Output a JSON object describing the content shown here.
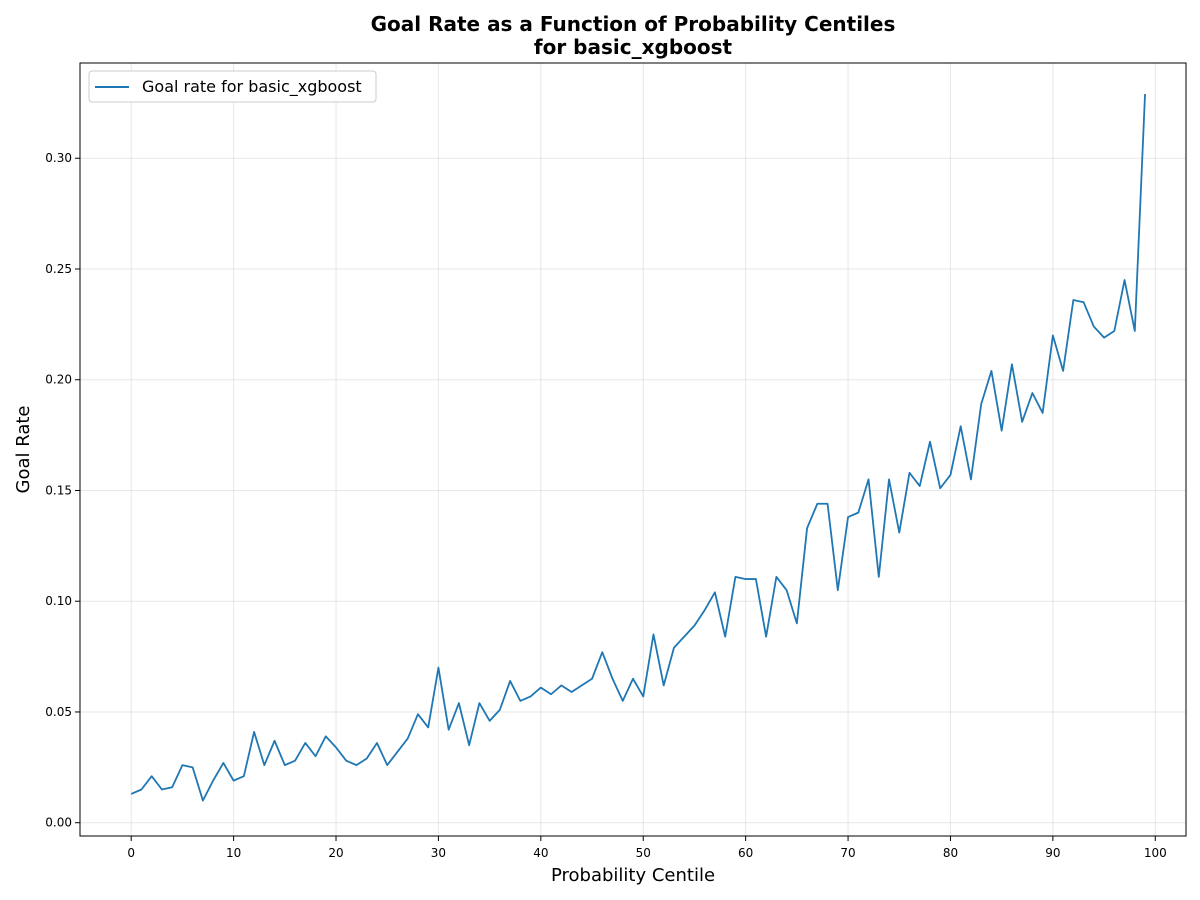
{
  "chart_data": {
    "type": "line",
    "title": [
      "Goal Rate as a Function of Probability Centiles",
      "for basic_xgboost"
    ],
    "xlabel": "Probability Centile",
    "ylabel": "Goal Rate",
    "xlim": [
      -5,
      103
    ],
    "ylim": [
      -0.006,
      0.343
    ],
    "xticks": [
      0,
      10,
      20,
      30,
      40,
      50,
      60,
      70,
      80,
      90,
      100
    ],
    "yticks": [
      0.0,
      0.05,
      0.1,
      0.15,
      0.2,
      0.25,
      0.3
    ],
    "xtick_labels": [
      "0",
      "10",
      "20",
      "30",
      "40",
      "50",
      "60",
      "70",
      "80",
      "90",
      "100"
    ],
    "ytick_labels": [
      "0.00",
      "0.05",
      "0.10",
      "0.15",
      "0.20",
      "0.25",
      "0.30"
    ],
    "grid": true,
    "legend_position": "top-left",
    "series": [
      {
        "name": "Goal rate for basic_xgboost",
        "color": "#1f77b4",
        "x": [
          0,
          1,
          2,
          3,
          4,
          5,
          6,
          7,
          8,
          9,
          10,
          11,
          12,
          13,
          14,
          15,
          16,
          17,
          18,
          19,
          20,
          21,
          22,
          23,
          24,
          25,
          26,
          27,
          28,
          29,
          30,
          31,
          32,
          33,
          34,
          35,
          36,
          37,
          38,
          39,
          40,
          41,
          42,
          43,
          44,
          45,
          46,
          47,
          48,
          49,
          50,
          51,
          52,
          53,
          54,
          55,
          56,
          57,
          58,
          59,
          60,
          61,
          62,
          63,
          64,
          65,
          66,
          67,
          68,
          69,
          70,
          71,
          72,
          73,
          74,
          75,
          76,
          77,
          78,
          79,
          80,
          81,
          82,
          83,
          84,
          85,
          86,
          87,
          88,
          89,
          90,
          91,
          92,
          93,
          94,
          95,
          96,
          97,
          98,
          99
        ],
        "values": [
          0.013,
          0.015,
          0.021,
          0.015,
          0.016,
          0.026,
          0.025,
          0.01,
          0.019,
          0.027,
          0.019,
          0.021,
          0.041,
          0.026,
          0.037,
          0.026,
          0.028,
          0.036,
          0.03,
          0.039,
          0.034,
          0.028,
          0.026,
          0.029,
          0.036,
          0.026,
          0.032,
          0.038,
          0.049,
          0.043,
          0.07,
          0.042,
          0.054,
          0.035,
          0.054,
          0.046,
          0.051,
          0.064,
          0.055,
          0.057,
          0.061,
          0.058,
          0.062,
          0.059,
          0.062,
          0.065,
          0.077,
          0.065,
          0.055,
          0.065,
          0.057,
          0.085,
          0.062,
          0.079,
          0.084,
          0.089,
          0.096,
          0.104,
          0.084,
          0.111,
          0.11,
          0.11,
          0.084,
          0.111,
          0.105,
          0.09,
          0.133,
          0.144,
          0.144,
          0.105,
          0.138,
          0.14,
          0.155,
          0.111,
          0.155,
          0.131,
          0.158,
          0.152,
          0.172,
          0.151,
          0.157,
          0.179,
          0.155,
          0.189,
          0.204,
          0.177,
          0.207,
          0.181,
          0.194,
          0.185,
          0.22,
          0.204,
          0.236,
          0.235,
          0.224,
          0.219,
          0.222,
          0.245,
          0.222,
          0.329
        ]
      }
    ]
  }
}
